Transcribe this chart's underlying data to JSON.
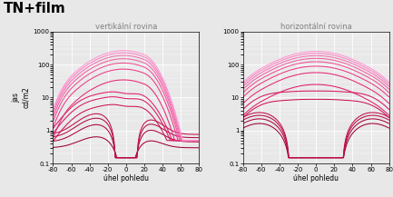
{
  "title": "TN+film",
  "left_subtitle": "vertikální rovina",
  "right_subtitle": "horizontální rovina",
  "xlabel": "úhel pohledu",
  "ylabel": "jas\ncd/m2",
  "ylim": [
    0.1,
    1000
  ],
  "background_color": "#e8e8e8",
  "grid_color": "#ffffff",
  "n_curves": 14
}
